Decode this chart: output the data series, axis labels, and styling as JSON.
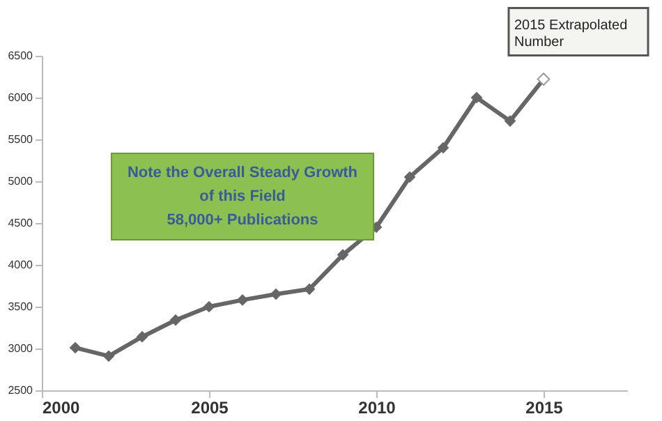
{
  "chart_data": {
    "type": "line",
    "x": [
      2001,
      2002,
      2003,
      2004,
      2005,
      2006,
      2007,
      2008,
      2009,
      2010,
      2011,
      2012,
      2013,
      2014,
      2015
    ],
    "series": [
      {
        "color": "#666666",
        "values": [
          3010,
          2910,
          3140,
          3340,
          3500,
          3580,
          3650,
          3710,
          4120,
          4450,
          5050,
          5400,
          6000,
          5720,
          6220
        ]
      }
    ],
    "xlim": [
      2000,
      2017.5
    ],
    "xticks": [
      2000,
      2005,
      2010,
      2015
    ],
    "ylim": [
      2500,
      6500
    ],
    "yticks": [
      2500,
      3000,
      3500,
      4000,
      4500,
      5000,
      5500,
      6000,
      6500
    ],
    "grid": false,
    "marker": "diamond",
    "line_style": "solid",
    "annotations": [
      {
        "text": "2015 Extrapolated\nNumber",
        "x": 2015,
        "y": 6220
      },
      "Note the Overall Steady Growth\nof this Field\n58,000+ Publications"
    ]
  }
}
